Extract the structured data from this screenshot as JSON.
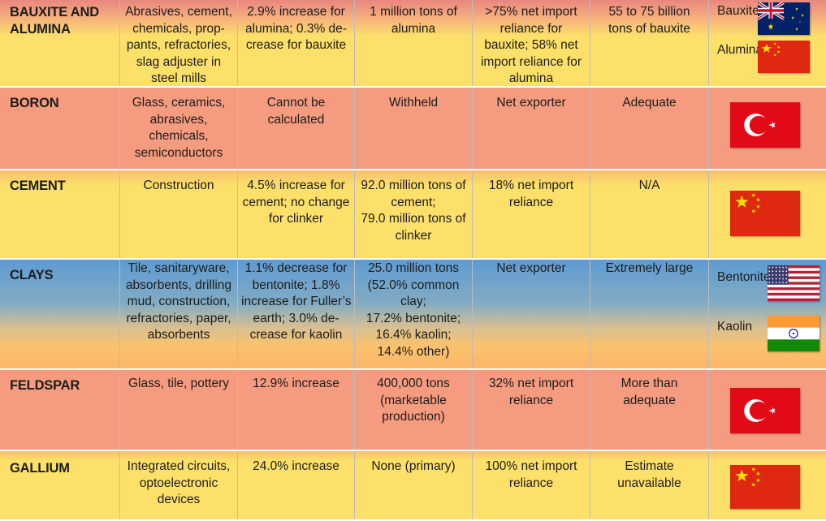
{
  "rows": [
    {
      "mineral": [
        "BAUXITE AND",
        "ALUMINA"
      ],
      "uses": [
        "Abrasives, cement,",
        "chemicals, prop-",
        "pants, refractories,",
        "slag adjuster in",
        "steel mills"
      ],
      "change": [
        "2.9% increase for",
        "alumina; 0.3% de-",
        "crease for bauxite"
      ],
      "production": [
        "1 million tons of",
        "alumina"
      ],
      "import": [
        ">75% net import",
        "reliance for",
        "bauxite; 58% net",
        "import reliance for",
        "alumina"
      ],
      "reserves": [
        "55 to 75 billion",
        "tons of bauxite"
      ],
      "flags": [
        {
          "label": "Bauxite",
          "country": "australia"
        },
        {
          "label": "Alumina",
          "country": "china"
        }
      ]
    },
    {
      "mineral": [
        "BORON"
      ],
      "uses": [
        "Glass, ceramics,",
        "abrasives,",
        "chemicals,",
        "semiconductors"
      ],
      "change": [
        "Cannot be",
        "calculated"
      ],
      "production": [
        "Withheld"
      ],
      "import": [
        "Net exporter"
      ],
      "reserves": [
        "Adequate"
      ],
      "flags": [
        {
          "label": "",
          "country": "turkey"
        }
      ]
    },
    {
      "mineral": [
        "CEMENT"
      ],
      "uses": [
        "Construction"
      ],
      "change": [
        "4.5% increase for",
        "cement; no change",
        "for clinker"
      ],
      "production": [
        "92.0 million tons of",
        "cement;",
        "79.0 million tons of",
        "clinker"
      ],
      "import": [
        "18% net import",
        "reliance"
      ],
      "reserves": [
        "N/A"
      ],
      "flags": [
        {
          "label": "",
          "country": "china"
        }
      ]
    },
    {
      "mineral": [
        "CLAYS"
      ],
      "uses": [
        "Tile, sanitaryware,",
        "absorbents, drilling",
        "mud, construction,",
        "refractories, paper,",
        "absorbents"
      ],
      "change": [
        "1.1% decrease for",
        "bentonite; 1.8%",
        "increase for Fuller’s",
        "earth; 3.0% de-",
        "crease for kaolin"
      ],
      "production": [
        "25.0 million tons",
        "(52.0% common",
        "clay;",
        "17.2% bentonite;",
        "16.4% kaolin;",
        "14.4% other)"
      ],
      "import": [
        "Net exporter"
      ],
      "reserves": [
        "Extremely large"
      ],
      "flags": [
        {
          "label": "Bentonite",
          "country": "usa"
        },
        {
          "label": "Kaolin",
          "country": "india"
        }
      ]
    },
    {
      "mineral": [
        "FELDSPAR"
      ],
      "uses": [
        "Glass, tile, pottery"
      ],
      "change": [
        "12.9% increase"
      ],
      "production": [
        "400,000 tons",
        "(marketable",
        "production)"
      ],
      "import": [
        "32% net import",
        "reliance"
      ],
      "reserves": [
        "More than",
        "adequate"
      ],
      "flags": [
        {
          "label": "",
          "country": "turkey"
        }
      ]
    },
    {
      "mineral": [
        "GALLIUM"
      ],
      "uses": [
        "Integrated circuits,",
        "optoelectronic",
        "devices"
      ],
      "change": [
        "24.0% increase"
      ],
      "production": [
        "None (primary)"
      ],
      "import": [
        "100% net import",
        "reliance"
      ],
      "reserves": [
        "Estimate",
        "unavailable"
      ],
      "flags": [
        {
          "label": "",
          "country": "china"
        }
      ]
    }
  ],
  "colors": {
    "yellow": "#fde06a",
    "salmon": "#f59b80",
    "blue": "#6fa3cd",
    "divider": "#bcbcbc",
    "text": "#1d1d1b"
  }
}
